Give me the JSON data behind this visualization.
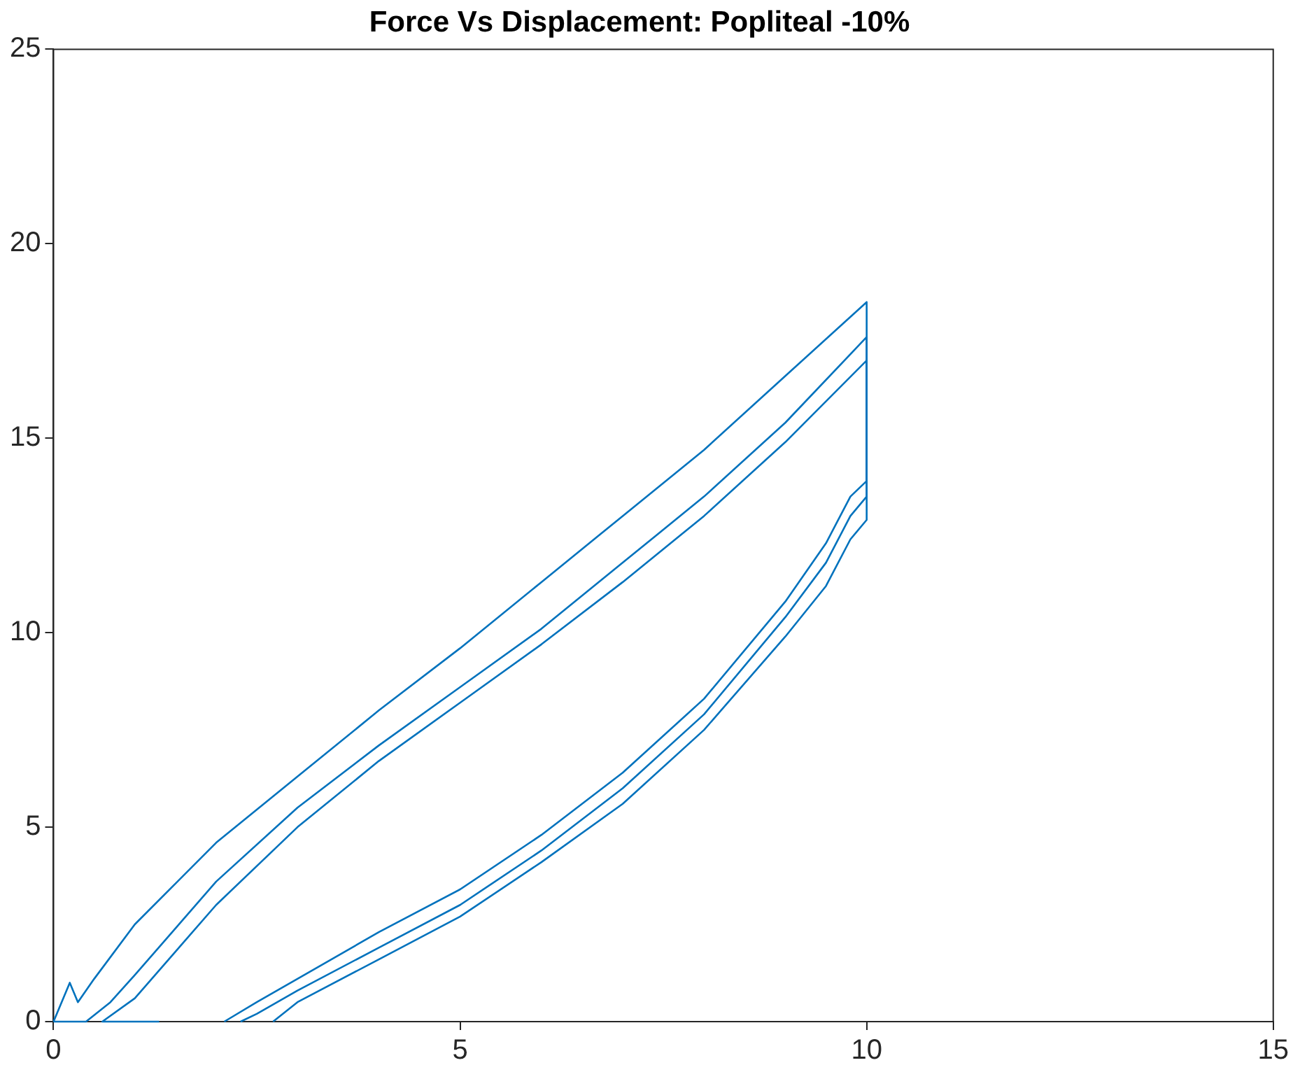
{
  "chart_data": {
    "type": "line",
    "title": "Force Vs Displacement: Popliteal -10%",
    "xlim": [
      0,
      15
    ],
    "ylim": [
      0,
      25
    ],
    "xticks": [
      0,
      5,
      10,
      15
    ],
    "yticks": [
      0,
      5,
      10,
      15,
      20,
      25
    ],
    "series": [
      {
        "color": "#0072bd",
        "x": [
          0,
          0.1,
          0.2,
          0.3,
          0.5,
          1,
          2,
          3,
          4,
          5,
          6,
          7,
          8,
          9,
          10,
          10,
          9.8,
          9.5,
          9,
          8,
          7,
          6,
          5,
          4,
          3,
          2.5,
          2.1
        ],
        "values": [
          0,
          0.5,
          1.0,
          0.5,
          1.1,
          2.5,
          4.6,
          6.3,
          8.0,
          9.6,
          11.3,
          13.0,
          14.7,
          16.6,
          18.5,
          13.9,
          13.5,
          12.3,
          10.8,
          8.3,
          6.4,
          4.8,
          3.4,
          2.3,
          1.1,
          0.5,
          0
        ]
      },
      {
        "color": "#0072bd",
        "x": [
          0,
          0.4,
          0.7,
          1,
          2,
          3,
          4,
          5,
          6,
          7,
          8,
          9,
          10,
          10,
          9.8,
          9.5,
          9,
          8,
          7,
          6,
          5,
          4,
          3,
          2.5,
          2.3
        ],
        "values": [
          0,
          0,
          0.5,
          1.2,
          3.6,
          5.5,
          7.1,
          8.6,
          10.1,
          11.8,
          13.5,
          15.4,
          17.6,
          13.5,
          13.0,
          11.8,
          10.4,
          7.9,
          6.0,
          4.4,
          3.0,
          1.9,
          0.8,
          0.2,
          0
        ]
      },
      {
        "color": "#0072bd",
        "x": [
          1.3,
          0.6,
          1,
          2,
          3,
          4,
          5,
          6,
          7,
          8,
          9,
          10,
          10,
          9.8,
          9.5,
          9,
          8,
          7,
          6,
          5,
          4,
          3,
          2.7
        ],
        "values": [
          0,
          0,
          0.6,
          3.0,
          5.0,
          6.7,
          8.2,
          9.7,
          11.3,
          13.0,
          14.9,
          17.0,
          12.9,
          12.4,
          11.2,
          9.9,
          7.5,
          5.6,
          4.1,
          2.7,
          1.6,
          0.5,
          0
        ]
      }
    ]
  }
}
